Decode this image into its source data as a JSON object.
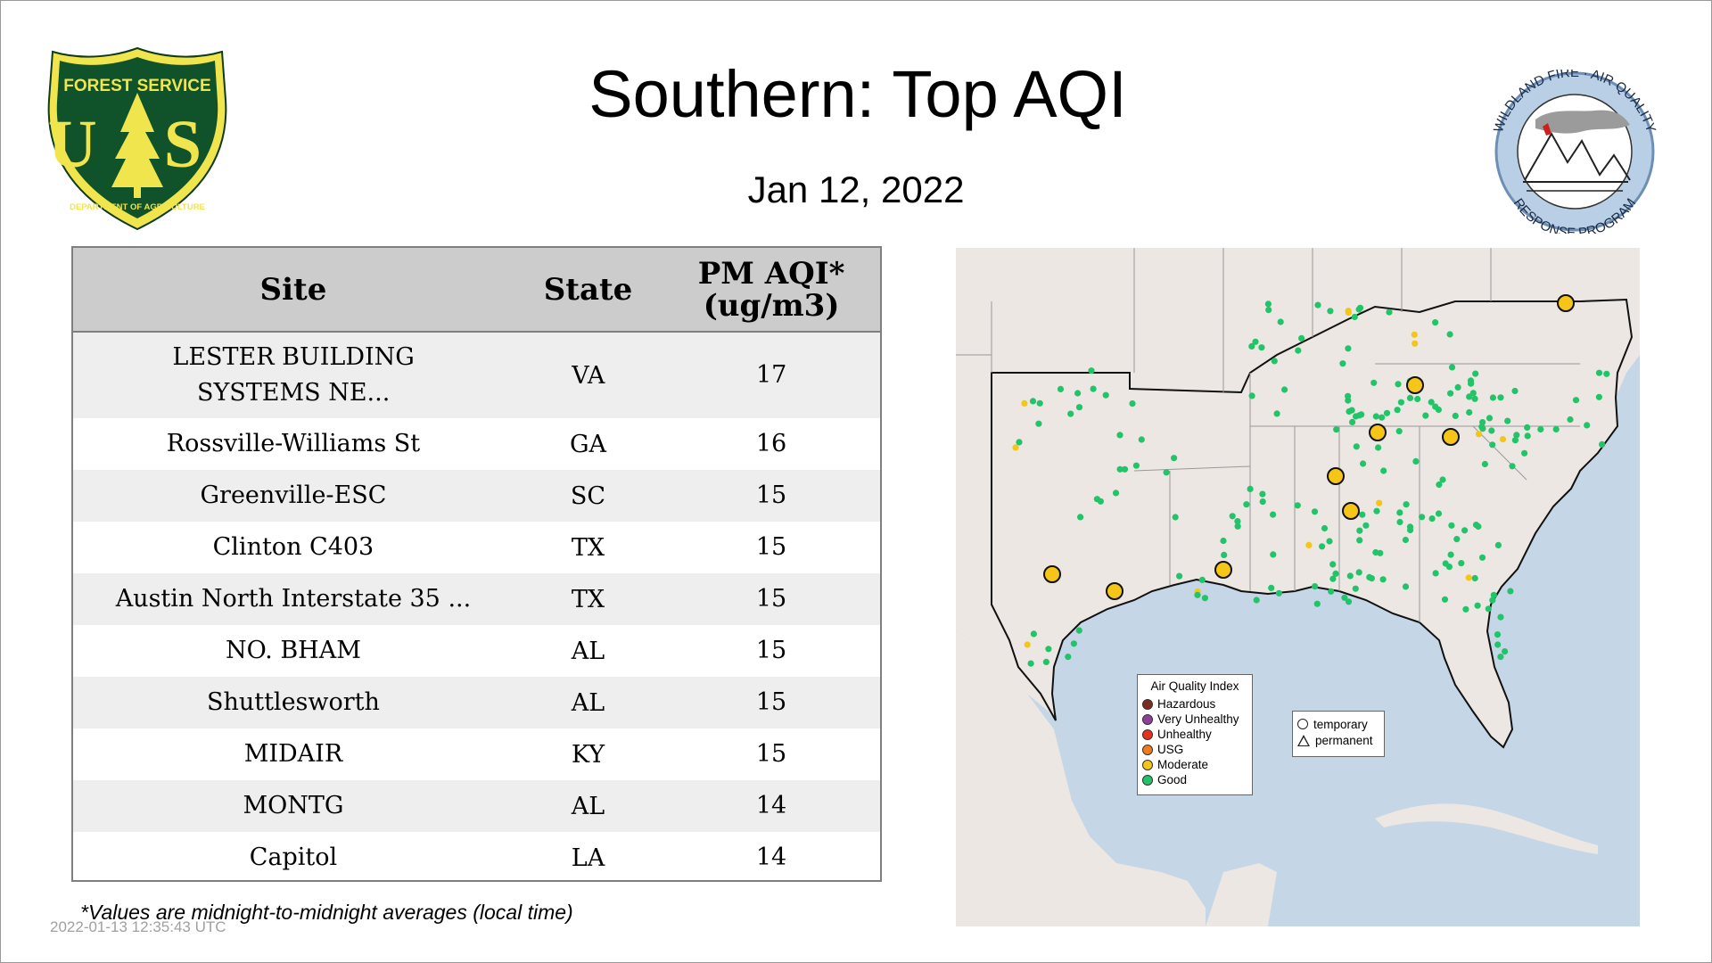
{
  "title": "Southern: Top AQI",
  "date": "Jan 12, 2022",
  "logos": {
    "left_icon": "forest-service-shield-logo",
    "right_icon": "wildland-fire-air-quality-response-program-logo",
    "left_text_top": "FOREST SERVICE",
    "left_text_main": "U S",
    "left_text_bottom": "DEPARTMENT OF AGRICULTURE",
    "right_text_top": "WILDLAND FIRE · AIR QUALITY",
    "right_text_bottom": "RESPONSE PROGRAM"
  },
  "table": {
    "headers": {
      "site": "Site",
      "state": "State",
      "aqi_line1": "PM AQI*",
      "aqi_line2": "(ug/m3)"
    },
    "rows": [
      {
        "site": "LESTER BUILDING SYSTEMS NE...",
        "state": "VA",
        "aqi": "17"
      },
      {
        "site": "Rossville-Williams St",
        "state": "GA",
        "aqi": "16"
      },
      {
        "site": "Greenville-ESC",
        "state": "SC",
        "aqi": "15"
      },
      {
        "site": "Clinton C403",
        "state": "TX",
        "aqi": "15"
      },
      {
        "site": "Austin North Interstate 35 ...",
        "state": "TX",
        "aqi": "15"
      },
      {
        "site": "NO. BHAM",
        "state": "AL",
        "aqi": "15"
      },
      {
        "site": "Shuttlesworth",
        "state": "AL",
        "aqi": "15"
      },
      {
        "site": "MIDAIR",
        "state": "KY",
        "aqi": "15"
      },
      {
        "site": "MONTG",
        "state": "AL",
        "aqi": "14"
      },
      {
        "site": "Capitol",
        "state": "LA",
        "aqi": "14"
      }
    ]
  },
  "footnote": "*Values are midnight-to-midnight averages (local time)",
  "timestamp": "2022-01-13 12:35:43 UTC",
  "map": {
    "legend_title": "Air Quality Index",
    "legend_items": [
      {
        "label": "Hazardous",
        "color": "#7e2b1e"
      },
      {
        "label": "Very Unhealthy",
        "color": "#8f3f97"
      },
      {
        "label": "Unhealthy",
        "color": "#e8321c"
      },
      {
        "label": "USG",
        "color": "#f07b1c"
      },
      {
        "label": "Moderate",
        "color": "#f5c518"
      },
      {
        "label": "Good",
        "color": "#22c46a"
      }
    ],
    "shape_items": [
      {
        "label": "temporary",
        "icon": "circle-icon"
      },
      {
        "label": "permanent",
        "icon": "triangle-icon"
      }
    ],
    "colors": {
      "land": "#ece7e2",
      "water": "#c5d6e6",
      "good": "#22c46a",
      "moderate": "#f5c518"
    }
  }
}
